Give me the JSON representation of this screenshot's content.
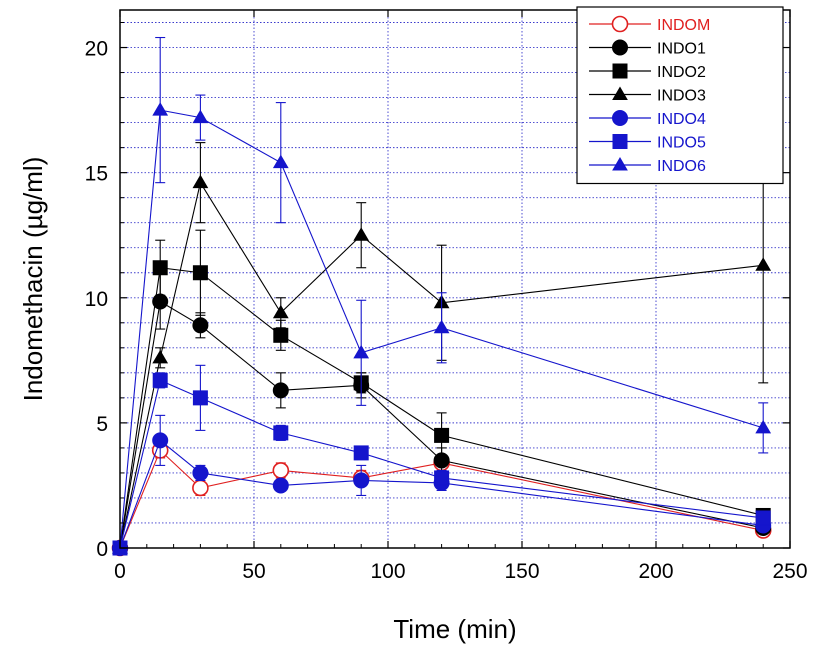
{
  "chart_data": {
    "type": "line",
    "title": "",
    "xlabel": "Time (min)",
    "ylabel": "Indomethacin (µg/ml)",
    "xlim": [
      0,
      250
    ],
    "ylim": [
      0,
      21.5
    ],
    "xticks": [
      0,
      50,
      100,
      150,
      200,
      250
    ],
    "yticks": [
      0,
      5,
      10,
      15,
      20
    ],
    "grid": true,
    "legend_position": "top-right",
    "x": [
      0,
      15,
      30,
      60,
      90,
      120,
      240
    ],
    "series": [
      {
        "name": "INDOM",
        "color": "#e02020",
        "marker": "circle-open",
        "values": [
          0,
          3.9,
          2.4,
          3.1,
          2.8,
          3.4,
          0.7
        ],
        "errors": [
          0,
          0.3,
          0.3,
          0.3,
          0.3,
          0.2,
          0.1
        ]
      },
      {
        "name": "INDO1",
        "color": "#000000",
        "marker": "circle",
        "values": [
          0,
          9.85,
          8.9,
          6.3,
          6.5,
          3.5,
          0.8
        ],
        "errors": [
          0,
          1.1,
          0.5,
          0.7,
          0.5,
          0.5,
          0.1
        ]
      },
      {
        "name": "INDO2",
        "color": "#000000",
        "marker": "square",
        "values": [
          0,
          11.2,
          11.0,
          8.5,
          6.6,
          4.5,
          1.3
        ],
        "errors": [
          0,
          1.1,
          1.7,
          0.6,
          0.4,
          0.9,
          0.2
        ]
      },
      {
        "name": "INDO3",
        "color": "#000000",
        "marker": "triangle",
        "values": [
          0,
          7.6,
          14.6,
          9.4,
          12.5,
          9.8,
          11.3
        ],
        "errors": [
          0,
          0.4,
          1.6,
          0.6,
          1.3,
          2.3,
          4.7
        ]
      },
      {
        "name": "INDO4",
        "color": "#1515cc",
        "marker": "circle",
        "values": [
          0,
          4.3,
          3.0,
          2.5,
          2.7,
          2.6,
          0.9
        ],
        "errors": [
          0,
          1.0,
          0.3,
          0.2,
          0.6,
          0.3,
          0.1
        ]
      },
      {
        "name": "INDO5",
        "color": "#1515cc",
        "marker": "square",
        "values": [
          0,
          6.7,
          6.0,
          4.6,
          3.8,
          2.8,
          1.2
        ],
        "errors": [
          0,
          0.3,
          1.3,
          0.3,
          0.2,
          0.3,
          0.1
        ]
      },
      {
        "name": "INDO6",
        "color": "#1515cc",
        "marker": "triangle",
        "values": [
          0,
          17.5,
          17.2,
          15.4,
          7.8,
          8.8,
          4.8
        ],
        "errors": [
          0,
          2.9,
          0.9,
          2.4,
          2.1,
          1.4,
          1.0
        ]
      }
    ]
  }
}
